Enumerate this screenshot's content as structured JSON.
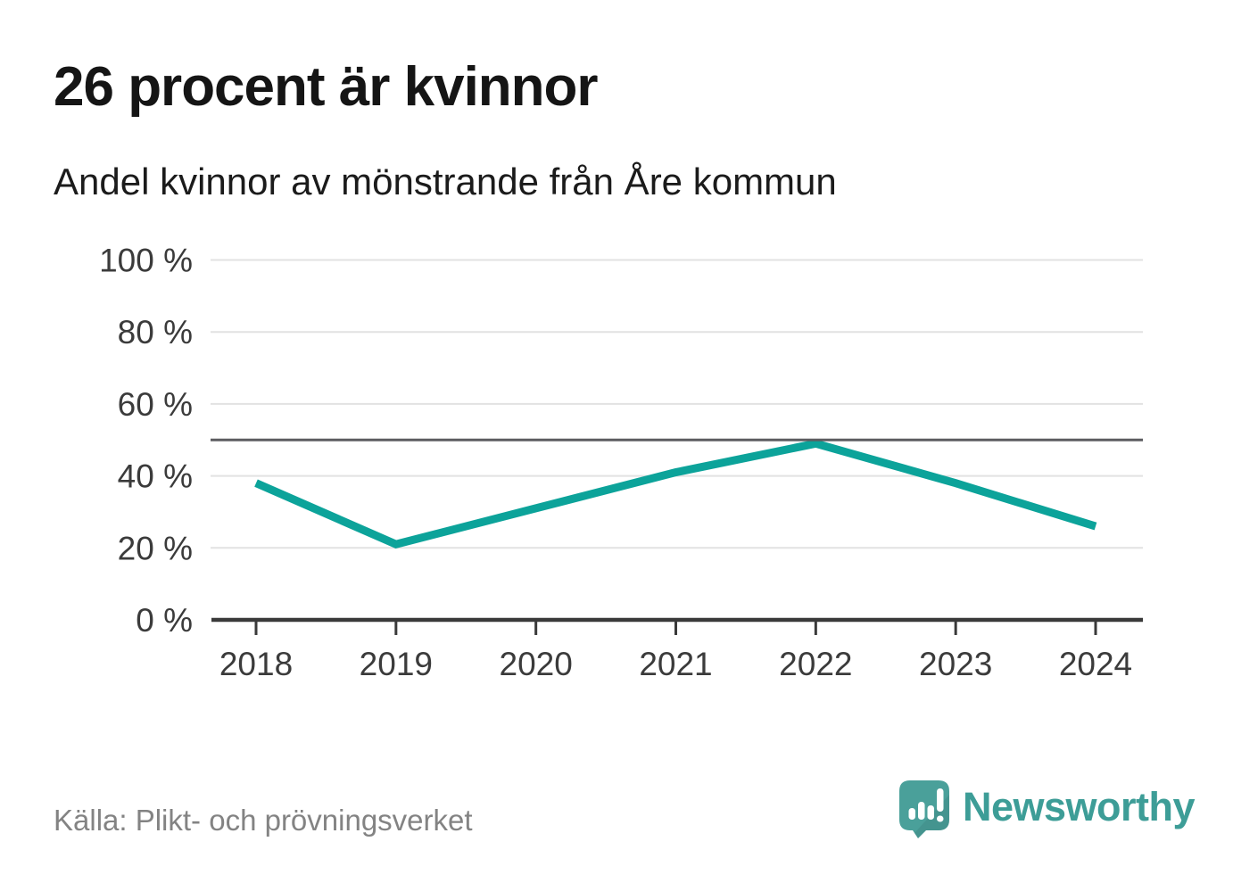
{
  "title": "26 procent är kvinnor",
  "subtitle": "Andel kvinnor av mönstrande från Åre kommun",
  "footer": {
    "source": "Källa: Plikt- och prövningsverket",
    "brand": "Newsworthy"
  },
  "colors": {
    "line": "#0ca39a",
    "reference_line": "#5d5d61",
    "gridline": "#e2e2e2",
    "axis": "#3a3a3a",
    "tick_label": "#3b3b3b",
    "title_text": "#151515",
    "source_text": "#838383",
    "brand_teal": "#3d9d97",
    "logo_bubble": "#4aa09a"
  },
  "chart_data": {
    "type": "line",
    "title": "26 procent är kvinnor",
    "subtitle": "Andel kvinnor av mönstrande från Åre kommun",
    "x": [
      "2018",
      "2019",
      "2020",
      "2021",
      "2022",
      "2023",
      "2024"
    ],
    "series": [
      {
        "name": "Andel kvinnor av mönstrande",
        "values": [
          38,
          21,
          31,
          41,
          49,
          38,
          26
        ]
      }
    ],
    "unit": "%",
    "ylim": [
      0,
      100
    ],
    "yticks": [
      0,
      20,
      40,
      60,
      80,
      100
    ],
    "ytick_labels": [
      "0 %",
      "20 %",
      "40 %",
      "60 %",
      "80 %",
      "100 %"
    ],
    "reference_line": 50,
    "grid": "horizontal",
    "legend": "none"
  }
}
